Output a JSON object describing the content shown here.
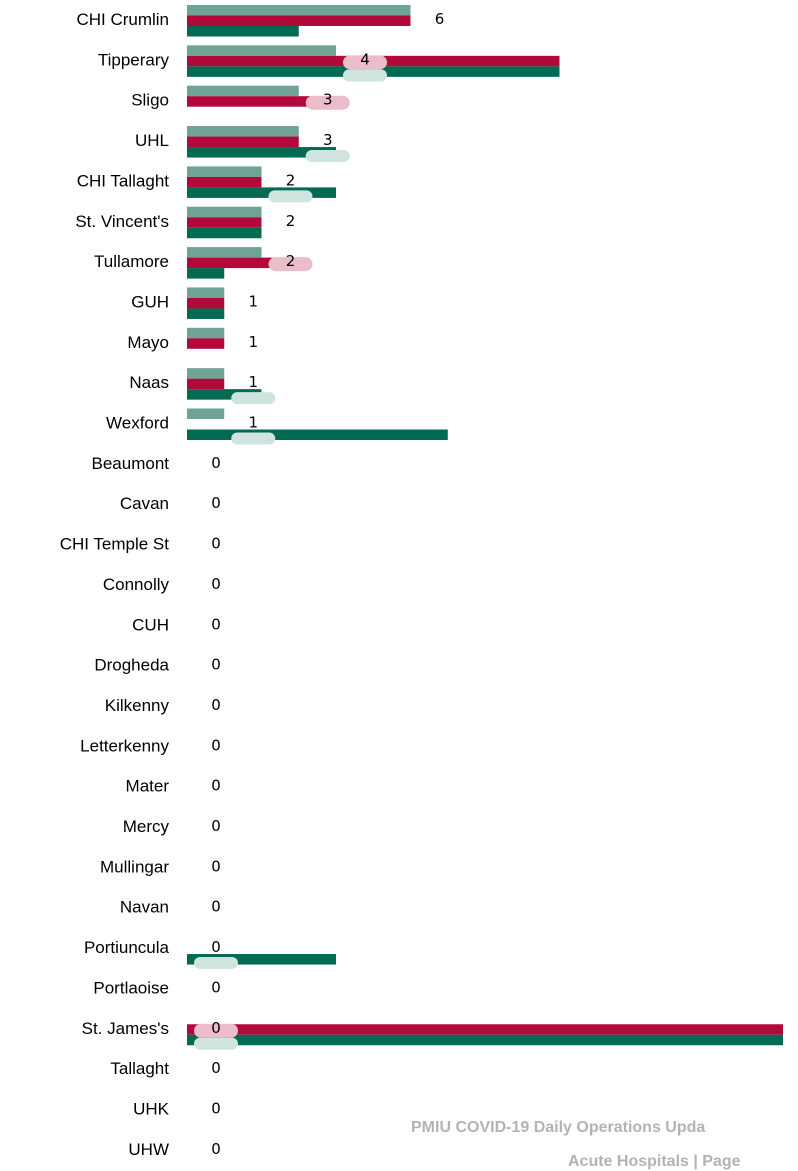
{
  "colors": {
    "series1": "#6fa396",
    "series2": "#b10a3a",
    "series3": "#006a52",
    "bubble_pink": "#ebbcca",
    "bubble_green": "#cfe4de",
    "label_text": "#000000",
    "footer_text": "#b3b3b3"
  },
  "footer": {
    "line1": "PMIU COVID-19 Daily Operations Upda",
    "line2": "Acute Hospitals | Page"
  },
  "chart_data": {
    "type": "bar",
    "orientation": "horizontal",
    "grid": false,
    "legend": "none",
    "xlim": [
      0,
      16
    ],
    "categories": [
      "CHI Crumlin",
      "Tipperary",
      "Sligo",
      "UHL",
      "CHI Tallaght",
      "St. Vincent's",
      "Tullamore",
      "GUH",
      "Mayo",
      "Naas",
      "Wexford",
      "Beaumont",
      "Cavan",
      "CHI Temple St",
      "Connolly",
      "CUH",
      "Drogheda",
      "Kilkenny",
      "Letterkenny",
      "Mater",
      "Mercy",
      "Mullingar",
      "Navan",
      "Portiuncula",
      "Portlaoise",
      "St. James's",
      "Tallaght",
      "UHK",
      "UHW"
    ],
    "series": [
      {
        "values": [
          6,
          4,
          3,
          3,
          2,
          2,
          2,
          1,
          1,
          1,
          1,
          0,
          0,
          0,
          0,
          0,
          0,
          0,
          0,
          0,
          0,
          0,
          0,
          0,
          0,
          0,
          0,
          0,
          0
        ]
      },
      {
        "values": [
          6,
          10,
          4,
          3,
          2,
          2,
          3,
          1,
          1,
          1,
          0,
          0,
          0,
          0,
          0,
          0,
          0,
          0,
          0,
          0,
          0,
          0,
          0,
          0,
          0,
          16,
          0,
          0,
          0
        ]
      },
      {
        "values": [
          3,
          10,
          0,
          4,
          4,
          2,
          1,
          1,
          0,
          2,
          7,
          0,
          0,
          0,
          0,
          0,
          0,
          0,
          0,
          0,
          0,
          0,
          0,
          4,
          0,
          16,
          0,
          0,
          0
        ]
      }
    ],
    "data_labels": [
      "6",
      "4",
      "3",
      "3",
      "2",
      "2",
      "2",
      "1",
      "1",
      "1",
      "1",
      "0",
      "0",
      "0",
      "0",
      "0",
      "0",
      "0",
      "0",
      "0",
      "0",
      "0",
      "0",
      "0",
      "0",
      "0",
      "0",
      "0",
      "0"
    ]
  }
}
